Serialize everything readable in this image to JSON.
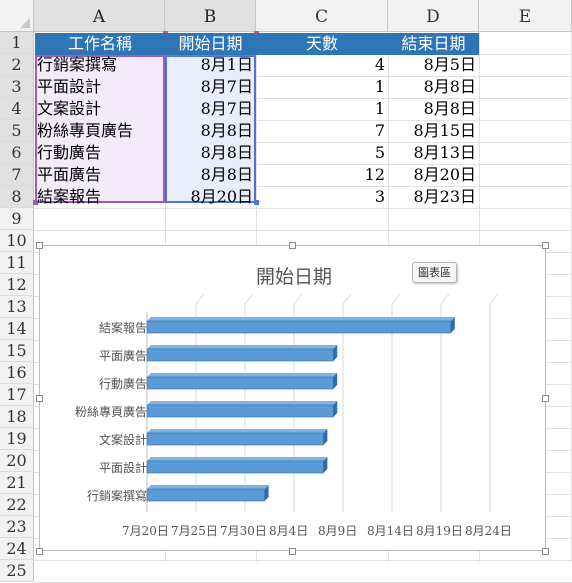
{
  "columns": [
    {
      "letter": "A",
      "selected": true
    },
    {
      "letter": "B",
      "selected": true
    },
    {
      "letter": "C",
      "selected": false
    },
    {
      "letter": "D",
      "selected": false
    },
    {
      "letter": "E",
      "selected": false
    }
  ],
  "rows": [
    "1",
    "2",
    "3",
    "4",
    "5",
    "6",
    "7",
    "8",
    "9",
    "10",
    "11",
    "12",
    "13",
    "14",
    "15",
    "16",
    "17",
    "18",
    "19",
    "20",
    "21",
    "22",
    "23",
    "24",
    "25"
  ],
  "header_row": [
    "工作名稱",
    "開始日期",
    "天數",
    "結束日期"
  ],
  "data_rows": [
    {
      "task": "行銷案撰寫",
      "start": "8月1日",
      "days": "4",
      "end": "8月5日"
    },
    {
      "task": "平面設計",
      "start": "8月7日",
      "days": "1",
      "end": "8月8日"
    },
    {
      "task": "文案設計",
      "start": "8月7日",
      "days": "1",
      "end": "8月8日"
    },
    {
      "task": "粉絲專頁廣告",
      "start": "8月8日",
      "days": "7",
      "end": "8月15日"
    },
    {
      "task": "行動廣告",
      "start": "8月8日",
      "days": "5",
      "end": "8月13日"
    },
    {
      "task": "平面廣告",
      "start": "8月8日",
      "days": "12",
      "end": "8月20日"
    },
    {
      "task": "結案報告",
      "start": "8月20日",
      "days": "3",
      "end": "8月23日"
    }
  ],
  "tooltip": "圖表區",
  "colors": {
    "header_fill": "#2e75b6",
    "bar_fill": "#5b9bd5",
    "bar_edge": "#2f6eae",
    "range_a": "#9a5fb5",
    "range_b": "#4f73d8",
    "range_hdr": "#d25a5a"
  },
  "chart_data": {
    "type": "bar",
    "orientation": "horizontal",
    "title": "開始日期",
    "categories": [
      "結案報告",
      "平面廣告",
      "行動廣告",
      "粉絲專頁廣告",
      "文案設計",
      "平面設計",
      "行銷案撰寫"
    ],
    "values": [
      "8月20日",
      "8月8日",
      "8月8日",
      "8月8日",
      "8月7日",
      "8月7日",
      "8月1日"
    ],
    "x_tick_labels": [
      "7月20日",
      "7月25日",
      "7月30日",
      "8月4日",
      "8月9日",
      "8月14日",
      "8月19日",
      "8月24日"
    ],
    "grid": true,
    "legend": "none",
    "style": "3d"
  }
}
